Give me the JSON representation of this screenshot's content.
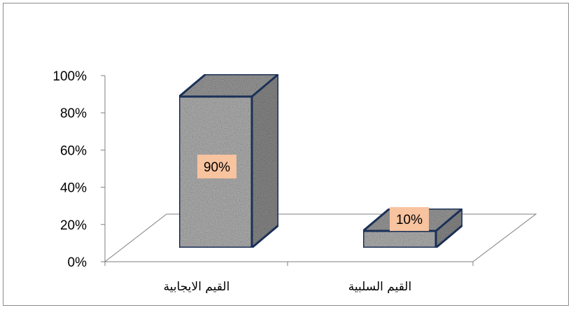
{
  "chart_data": {
    "type": "bar",
    "categories": [
      "القيم الايجابية",
      "القيم السلبية"
    ],
    "values": [
      90,
      10
    ],
    "data_labels": [
      "90%",
      "10%"
    ],
    "ylim": [
      0,
      100
    ],
    "yticks": [
      "0%",
      "20%",
      "40%",
      "60%",
      "80%",
      "100%"
    ],
    "title": "",
    "xlabel": "",
    "ylabel": "",
    "grid": false,
    "three_d": true,
    "colors": {
      "bar_outline": "#1f3864",
      "bar_fill": "#a6a6a6",
      "label_box": "#f8c39f",
      "axis": "#7f7f7f"
    }
  }
}
